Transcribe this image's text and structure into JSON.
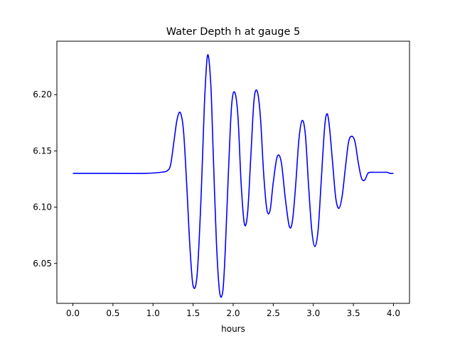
{
  "chart_data": {
    "type": "line",
    "title": "Water Depth h at gauge 5",
    "xlabel": "hours",
    "ylabel": "",
    "xlim": [
      -0.2,
      4.2
    ],
    "ylim": [
      6.0145,
      6.2475
    ],
    "xticks": [
      0.0,
      0.5,
      1.0,
      1.5,
      2.0,
      2.5,
      3.0,
      3.5,
      4.0
    ],
    "xtick_labels": [
      "0.0",
      "0.5",
      "1.0",
      "1.5",
      "2.0",
      "2.5",
      "3.0",
      "3.5",
      "4.0"
    ],
    "yticks": [
      6.05,
      6.1,
      6.15,
      6.2
    ],
    "ytick_labels": [
      "6.05",
      "6.10",
      "6.15",
      "6.20"
    ],
    "grid": false,
    "series": [
      {
        "color": "#0000ff",
        "x": [
          0.0,
          0.5,
          0.9,
          1.1,
          1.18,
          1.22,
          1.26,
          1.3,
          1.34,
          1.38,
          1.42,
          1.46,
          1.5,
          1.55,
          1.6,
          1.64,
          1.68,
          1.72,
          1.75,
          1.79,
          1.83,
          1.87,
          1.9,
          1.94,
          1.98,
          2.02,
          2.06,
          2.1,
          2.14,
          2.18,
          2.22,
          2.26,
          2.3,
          2.34,
          2.38,
          2.42,
          2.46,
          2.5,
          2.55,
          2.6,
          2.65,
          2.7,
          2.74,
          2.78,
          2.82,
          2.86,
          2.9,
          2.94,
          2.98,
          3.02,
          3.06,
          3.1,
          3.14,
          3.17,
          3.2,
          3.24,
          3.28,
          3.32,
          3.36,
          3.4,
          3.44,
          3.48,
          3.52,
          3.56,
          3.6,
          3.64,
          3.68,
          3.72,
          3.76,
          3.8,
          3.84,
          3.88,
          3.92,
          3.96,
          4.0
        ],
        "y": [
          6.13,
          6.13,
          6.13,
          6.131,
          6.1325,
          6.138,
          6.158,
          6.178,
          6.184,
          6.168,
          6.12,
          6.065,
          6.03,
          6.04,
          6.11,
          6.19,
          6.235,
          6.21,
          6.15,
          6.07,
          6.025,
          6.025,
          6.06,
          6.13,
          6.19,
          6.202,
          6.18,
          6.12,
          6.085,
          6.095,
          6.145,
          6.195,
          6.203,
          6.18,
          6.13,
          6.098,
          6.097,
          6.122,
          6.145,
          6.14,
          6.108,
          6.083,
          6.088,
          6.12,
          6.16,
          6.177,
          6.165,
          6.12,
          6.08,
          6.065,
          6.08,
          6.125,
          6.17,
          6.183,
          6.172,
          6.14,
          6.108,
          6.099,
          6.11,
          6.135,
          6.158,
          6.163,
          6.158,
          6.14,
          6.126,
          6.124,
          6.13,
          6.131,
          6.131,
          6.131,
          6.131,
          6.131,
          6.131,
          6.13,
          6.13
        ]
      }
    ]
  }
}
